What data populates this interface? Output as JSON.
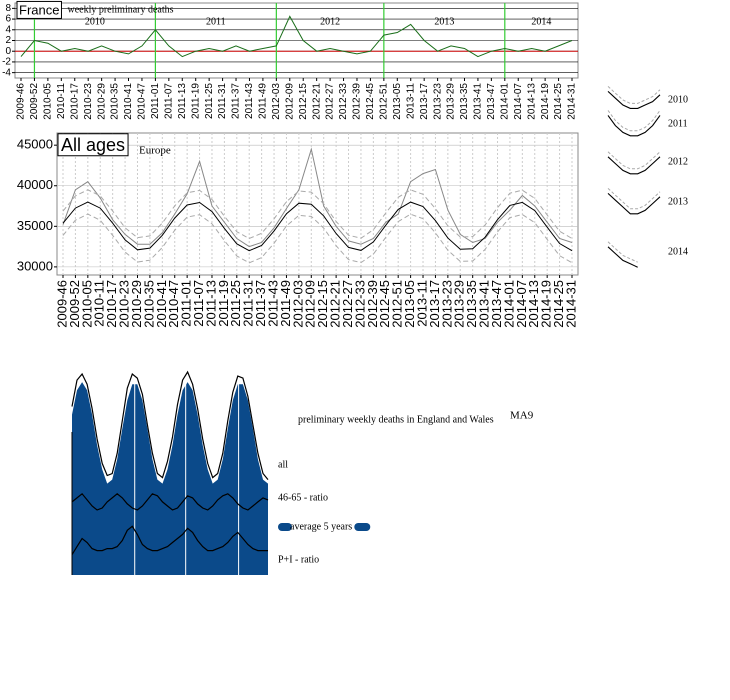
{
  "chart_data": [
    {
      "type": "line",
      "title": "France",
      "subtitle": "weekly preliminary deaths",
      "categories": [
        "2009-46",
        "2009-52",
        "2010-05",
        "2010-11",
        "2010-17",
        "2010-23",
        "2010-29",
        "2010-35",
        "2010-41",
        "2010-47",
        "2011-01",
        "2011-07",
        "2011-13",
        "2011-19",
        "2011-25",
        "2011-31",
        "2011-37",
        "2011-43",
        "2011-49",
        "2012-03",
        "2012-09",
        "2012-15",
        "2012-21",
        "2012-27",
        "2012-33",
        "2012-39",
        "2012-45",
        "2012-51",
        "2013-05",
        "2013-11",
        "2013-17",
        "2013-23",
        "2013-29",
        "2013-35",
        "2013-41",
        "2013-47",
        "2014-01",
        "2014-07",
        "2014-13",
        "2014-19",
        "2014-25",
        "2014-31"
      ],
      "annotations": [
        "2010",
        "2011",
        "2012",
        "2013",
        "2014"
      ],
      "vlines": [
        "2009-52",
        "2011-01",
        "2012-03",
        "2012-51",
        "2014-01"
      ],
      "vline_color": "#33cc33",
      "series": [
        {
          "color": "#1a6e1a",
          "values": [
            -1,
            2,
            1.5,
            0,
            0.5,
            0,
            1,
            0,
            -0.5,
            1,
            4,
            1,
            -1,
            0,
            0.5,
            0,
            1,
            0,
            0.5,
            1,
            6.5,
            2,
            0,
            0.5,
            0,
            -0.5,
            0,
            3,
            3.5,
            5,
            2,
            0,
            1,
            0.5,
            -1,
            0,
            0.5,
            0,
            0.5,
            0,
            1,
            2
          ]
        }
      ],
      "ylim": [
        -5,
        9
      ],
      "yticks": [
        -4,
        -2,
        0,
        2,
        4,
        6,
        8
      ],
      "grid": true,
      "reference_line": 0,
      "reference_color": "#cc0000"
    },
    {
      "type": "line",
      "title": "All ages",
      "subtitle": "Europe",
      "categories": [
        "2009-46",
        "2009-52",
        "2010-05",
        "2010-11",
        "2010-17",
        "2010-23",
        "2010-29",
        "2010-35",
        "2010-41",
        "2010-47",
        "2011-01",
        "2011-07",
        "2011-13",
        "2011-19",
        "2011-25",
        "2011-31",
        "2011-37",
        "2011-43",
        "2011-49",
        "2012-03",
        "2012-09",
        "2012-15",
        "2012-21",
        "2012-27",
        "2012-33",
        "2012-39",
        "2012-45",
        "2012-51",
        "2013-05",
        "2013-11",
        "2013-17",
        "2013-23",
        "2013-29",
        "2013-35",
        "2013-41",
        "2013-47",
        "2014-01",
        "2014-07",
        "2014-13",
        "2014-19",
        "2014-25",
        "2014-31"
      ],
      "series": [
        {
          "color": "#888888",
          "values": [
            35200,
            39500,
            40500,
            38500,
            35800,
            34000,
            32800,
            32800,
            34200,
            36500,
            39000,
            43000,
            37500,
            35500,
            33500,
            32500,
            33000,
            34800,
            37200,
            39500,
            44500,
            37500,
            35000,
            33200,
            32800,
            33500,
            35500,
            36500,
            40500,
            41500,
            42000,
            37000,
            34000,
            33000,
            33500,
            35500,
            37000,
            38800,
            37500,
            35500,
            33500,
            33000
          ]
        },
        {
          "color": "#000000",
          "values": [
            35380,
            37250,
            38000,
            37250,
            35380,
            33320,
            32100,
            32320,
            33890,
            36010,
            37630,
            37930,
            36810,
            34740,
            32840,
            32000,
            32640,
            34410,
            36550,
            37850,
            37720,
            36280,
            34110,
            32400,
            32030,
            33080,
            35140,
            37080,
            37990,
            37440,
            35700,
            33550,
            32180,
            32230,
            33660,
            35810,
            37580,
            37950,
            36940,
            34890,
            32880,
            32000
          ]
        },
        {
          "color": "#aaaaaa",
          "dash": true,
          "values": [
            36880,
            38750,
            39500,
            38750,
            36880,
            34820,
            33600,
            33820,
            35390,
            37510,
            39130,
            39430,
            38310,
            36240,
            34340,
            33500,
            34140,
            35910,
            38050,
            39350,
            39220,
            37780,
            35610,
            33900,
            33530,
            34580,
            36640,
            38580,
            39490,
            38940,
            37200,
            35050,
            33680,
            33730,
            35160,
            37310,
            39080,
            39450,
            38440,
            36390,
            34380,
            33500
          ]
        },
        {
          "color": "#aaaaaa",
          "dash": true,
          "values": [
            33880,
            35750,
            36500,
            35750,
            33880,
            31820,
            30600,
            30820,
            32390,
            34510,
            36130,
            36430,
            35310,
            33240,
            31340,
            30500,
            31140,
            32910,
            35050,
            36350,
            36220,
            34780,
            32610,
            30900,
            30530,
            31580,
            33640,
            35580,
            36490,
            35940,
            34200,
            32050,
            30680,
            30730,
            32160,
            34310,
            36080,
            36450,
            35440,
            33390,
            31380,
            30500
          ]
        }
      ],
      "ylim": [
        29000,
        46500
      ],
      "yticks": [
        30000,
        35000,
        40000,
        45000
      ],
      "grid": true
    },
    {
      "type": "area",
      "title": "preliminary weekly deaths in England and Wales",
      "subtitle": "MA9",
      "series": [
        {
          "name": "all",
          "color": "#000000",
          "values": [
            83,
            96,
            99,
            94,
            82,
            67,
            55,
            49,
            50,
            60,
            76,
            92,
            99,
            97,
            89,
            74,
            60,
            50,
            48,
            56,
            68,
            84,
            96,
            100,
            94,
            82,
            67,
            55,
            48,
            50,
            60,
            76,
            90,
            98,
            97,
            88,
            74,
            60,
            50,
            47
          ]
        },
        {
          "name": "46-65 - ratio",
          "color": "#000000",
          "values": [
            36,
            38,
            40,
            37,
            34,
            32,
            33,
            36,
            38,
            40,
            38,
            35,
            33,
            32,
            34,
            37,
            40,
            39,
            36,
            34,
            32,
            33,
            36,
            39,
            38,
            35,
            33,
            32,
            34,
            37,
            39,
            40,
            38,
            35,
            33,
            32,
            34,
            36,
            38,
            37
          ]
        },
        {
          "name": "average 5 years",
          "color": "#0b4a8a",
          "fill": true,
          "values": [
            79,
            91,
            95,
            91,
            79,
            64,
            52,
            45,
            47,
            57,
            72,
            86,
            94,
            94,
            86,
            72,
            57,
            47,
            45,
            52,
            64,
            79,
            91,
            95,
            91,
            79,
            64,
            52,
            45,
            47,
            57,
            72,
            86,
            94,
            94,
            86,
            72,
            57,
            47,
            45
          ]
        },
        {
          "name": "P+I - ratio",
          "color": "#000000",
          "values": [
            10,
            14,
            18,
            16,
            13,
            12,
            12,
            13,
            13,
            14,
            17,
            22,
            24,
            20,
            15,
            13,
            12,
            12,
            13,
            14,
            16,
            18,
            20,
            23,
            21,
            17,
            14,
            12,
            12,
            13,
            14,
            16,
            19,
            21,
            18,
            15,
            13,
            12,
            12,
            12
          ]
        }
      ],
      "ylim": [
        0,
        100
      ]
    },
    {
      "type": "small-multiples",
      "ylim": [
        0,
        10
      ],
      "panels": [
        {
          "label": "2010",
          "values": [
            9,
            7,
            5,
            4,
            4,
            5,
            6,
            8
          ]
        },
        {
          "label": "2011",
          "values": [
            9,
            6,
            4,
            3,
            3,
            4,
            6,
            9
          ]
        },
        {
          "label": "2012",
          "values": [
            8,
            6,
            4,
            3,
            3,
            4,
            6,
            8
          ]
        },
        {
          "label": "2013",
          "values": [
            9,
            7,
            5,
            3,
            3,
            4,
            6,
            8
          ]
        },
        {
          "label": "2014",
          "values": [
            8,
            6,
            4,
            3,
            2
          ]
        }
      ]
    }
  ]
}
